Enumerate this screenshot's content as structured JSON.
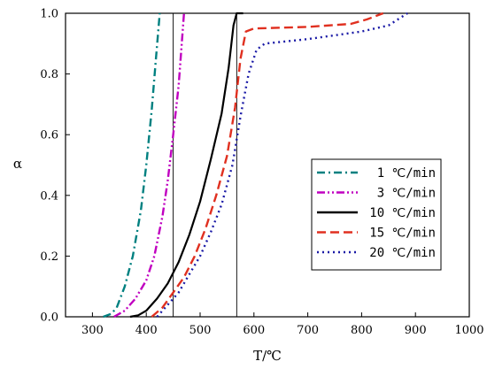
{
  "chart_data": {
    "type": "line",
    "xlabel": "T/℃",
    "ylabel": "α",
    "xlim": [
      250,
      1000
    ],
    "ylim": [
      0,
      1.0
    ],
    "xticks": [
      "300",
      "400",
      "500",
      "600",
      "700",
      "800",
      "900",
      "1000"
    ],
    "yticks": [
      "0.0",
      "0.2",
      "0.4",
      "0.6",
      "0.8",
      "1.0"
    ],
    "grid": false,
    "legend_position": "lower-right",
    "reference_lines_x": [
      450,
      568
    ],
    "series": [
      {
        "name": "1 ℃/min",
        "color": "#008080",
        "dash": "dashdot",
        "points": [
          [
            320,
            0
          ],
          [
            335,
            0.01
          ],
          [
            345,
            0.03
          ],
          [
            360,
            0.1
          ],
          [
            375,
            0.2
          ],
          [
            390,
            0.35
          ],
          [
            400,
            0.5
          ],
          [
            410,
            0.68
          ],
          [
            418,
            0.85
          ],
          [
            425,
            1.0
          ]
        ]
      },
      {
        "name": "3 ℃/min",
        "color": "#c000c0",
        "dash": "dashdotdot",
        "points": [
          [
            340,
            0
          ],
          [
            360,
            0.02
          ],
          [
            380,
            0.06
          ],
          [
            400,
            0.12
          ],
          [
            415,
            0.2
          ],
          [
            430,
            0.33
          ],
          [
            440,
            0.45
          ],
          [
            450,
            0.6
          ],
          [
            460,
            0.76
          ],
          [
            470,
            1.0
          ]
        ]
      },
      {
        "name": "10 ℃/min",
        "color": "#000000",
        "dash": "solid",
        "points": [
          [
            370,
            0
          ],
          [
            385,
            0.005
          ],
          [
            400,
            0.02
          ],
          [
            420,
            0.06
          ],
          [
            440,
            0.11
          ],
          [
            460,
            0.18
          ],
          [
            480,
            0.27
          ],
          [
            500,
            0.38
          ],
          [
            520,
            0.52
          ],
          [
            540,
            0.67
          ],
          [
            553,
            0.82
          ],
          [
            562,
            0.96
          ],
          [
            568,
            1.0
          ],
          [
            580,
            1.0
          ]
        ]
      },
      {
        "name": "15 ℃/min",
        "color": "#e03020",
        "dash": "dash",
        "points": [
          [
            410,
            0
          ],
          [
            430,
            0.03
          ],
          [
            450,
            0.08
          ],
          [
            470,
            0.13
          ],
          [
            490,
            0.2
          ],
          [
            510,
            0.29
          ],
          [
            530,
            0.4
          ],
          [
            550,
            0.53
          ],
          [
            565,
            0.69
          ],
          [
            575,
            0.85
          ],
          [
            585,
            0.94
          ],
          [
            600,
            0.95
          ],
          [
            700,
            0.955
          ],
          [
            780,
            0.965
          ],
          [
            810,
            0.98
          ],
          [
            840,
            1.0
          ]
        ]
      },
      {
        "name": "20 ℃/min",
        "color": "#1a1aa6",
        "dash": "dot",
        "points": [
          [
            420,
            0
          ],
          [
            440,
            0.04
          ],
          [
            460,
            0.08
          ],
          [
            480,
            0.14
          ],
          [
            500,
            0.2
          ],
          [
            520,
            0.28
          ],
          [
            540,
            0.37
          ],
          [
            560,
            0.5
          ],
          [
            575,
            0.66
          ],
          [
            590,
            0.8
          ],
          [
            605,
            0.88
          ],
          [
            620,
            0.9
          ],
          [
            700,
            0.915
          ],
          [
            800,
            0.94
          ],
          [
            850,
            0.96
          ],
          [
            885,
            1.0
          ]
        ]
      }
    ]
  }
}
